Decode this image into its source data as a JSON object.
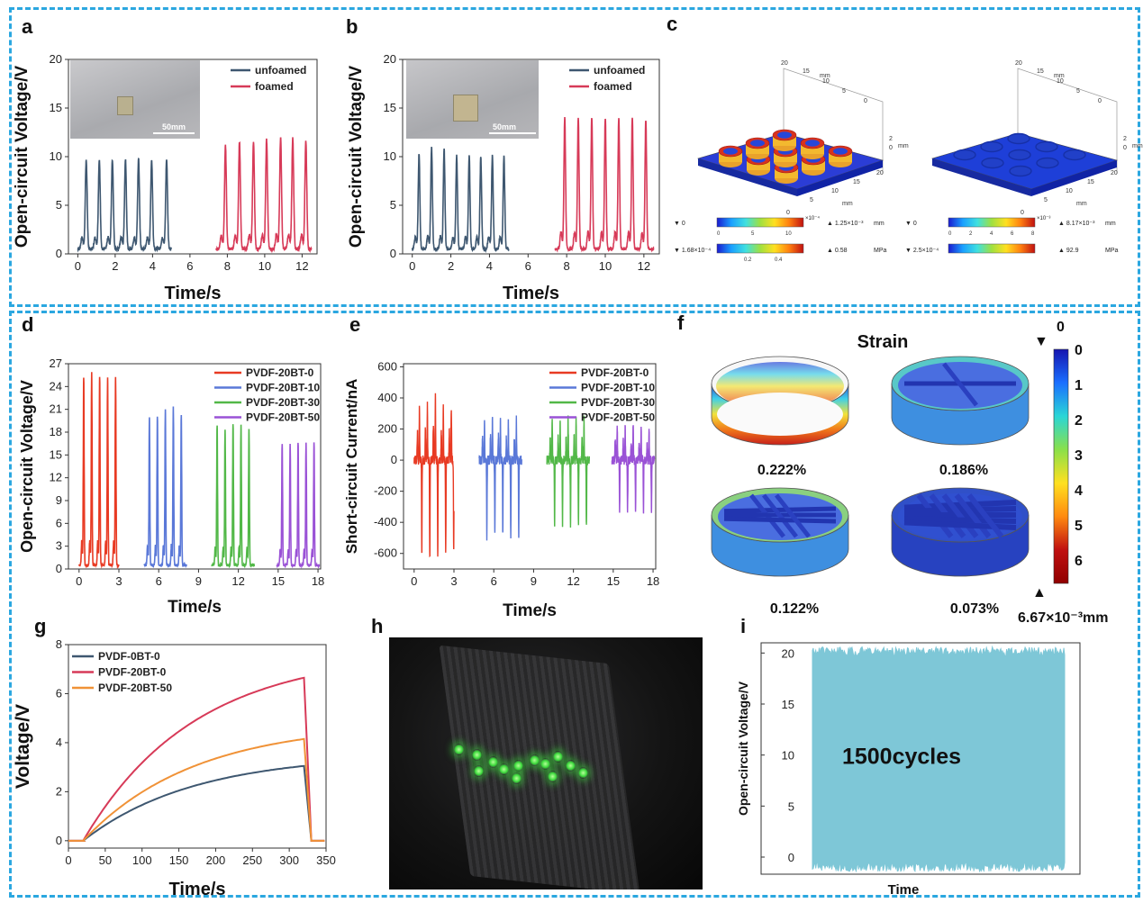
{
  "panels": {
    "a": "a",
    "b": "b",
    "c": "c",
    "d": "d",
    "e": "e",
    "f": "f",
    "g": "g",
    "h": "h",
    "i": "i"
  },
  "colors": {
    "unfoamed": "#3e5770",
    "foamed": "#d73a58",
    "bt0": "#e83a23",
    "bt10": "#5a78d8",
    "bt30": "#52b848",
    "bt50": "#9a52d6",
    "g0": "#3e5770",
    "g20_0": "#d73a58",
    "g20_50": "#f09237",
    "cycles": "#7ec7d7",
    "frame": "#2ba7e0"
  },
  "insets": {
    "scale_a": "50mm",
    "scale_b": "50mm"
  },
  "sim": {
    "left": {
      "axis_top": "20",
      "axis_t1": "15",
      "axis_t2": "10",
      "axis_t3": "5",
      "axis_t4": "0",
      "unit": "mm",
      "side_2": "2",
      "side_0": "0",
      "front_20": "20",
      "front_15": "15",
      "front_10": "10",
      "front_5": "5",
      "front_0": "0",
      "disp_min": "0",
      "disp_exp": "×10⁻⁴",
      "disp_max": "1.25×10⁻³",
      "disp_unit": "mm",
      "disp_t0": "0",
      "disp_t1": "5",
      "disp_t2": "10",
      "stress_min": "1.68×10⁻⁴",
      "stress_max": "0.58",
      "stress_unit": "MPa",
      "stress_t1": "0.2",
      "stress_t2": "0.4"
    },
    "right": {
      "axis_top": "20",
      "axis_t1": "15",
      "axis_t2": "10",
      "axis_t3": "5",
      "axis_t4": "0",
      "unit": "mm",
      "side_2": "2",
      "side_0": "0",
      "front_20": "20",
      "front_15": "15",
      "front_10": "10",
      "front_5": "5",
      "front_0": "0",
      "disp_min": "0",
      "disp_exp": "×10⁻³",
      "disp_max": "8.17×10⁻³",
      "disp_unit": "mm",
      "disp_t0": "0",
      "disp_t1": "2",
      "disp_t2": "4",
      "disp_t3": "6",
      "disp_t4": "8",
      "stress_min": "2.5×10⁻⁴",
      "stress_max": "92.9",
      "stress_unit": "MPa"
    }
  },
  "strain": {
    "title": "Strain",
    "values": [
      "0.222%",
      "0.186%",
      "0.122%",
      "0.073%"
    ],
    "scale_ticks": [
      "0",
      "1",
      "2",
      "3",
      "4",
      "5",
      "6"
    ],
    "scale_bottom": "6.67×10⁻³mm",
    "scale_top": "0"
  },
  "chart_data": [
    {
      "id": "a",
      "type": "line",
      "ylabel": "Open-circuit Voltage/V",
      "xlabel": "Time/s",
      "xlim": [
        -0.5,
        12.8
      ],
      "ylim": [
        0,
        20
      ],
      "xticks": [
        0,
        2,
        4,
        6,
        8,
        10,
        12
      ],
      "yticks": [
        0,
        5,
        10,
        15,
        20
      ],
      "series": [
        {
          "name": "unfoamed",
          "peaks_t": [
            0.45,
            1.15,
            1.85,
            2.55,
            3.25,
            3.95,
            4.75
          ],
          "peaks_v": [
            9.2,
            9.2,
            9.2,
            9.2,
            9.3,
            9.2,
            9.2
          ],
          "t_range": [
            0,
            5
          ]
        },
        {
          "name": "foamed",
          "peaks_t": [
            7.9,
            8.65,
            9.4,
            10.1,
            10.85,
            11.5,
            12.2
          ],
          "peaks_v": [
            10.6,
            11.0,
            11.1,
            11.3,
            11.5,
            11.4,
            11.2
          ],
          "t_range": [
            7.4,
            12.5
          ]
        }
      ]
    },
    {
      "id": "b",
      "type": "line",
      "ylabel": "Open-circuit Voltage/V",
      "xlabel": "Time/s",
      "xlim": [
        -0.5,
        12.8
      ],
      "ylim": [
        0,
        20
      ],
      "xticks": [
        0,
        2,
        4,
        6,
        8,
        10,
        12
      ],
      "yticks": [
        0,
        5,
        10,
        15,
        20
      ],
      "series": [
        {
          "name": "unfoamed",
          "peaks_t": [
            0.35,
            1.0,
            1.65,
            2.3,
            2.95,
            3.55,
            4.15,
            4.75
          ],
          "peaks_v": [
            9.8,
            10.5,
            10.2,
            9.6,
            9.6,
            9.5,
            9.6,
            9.5
          ],
          "t_range": [
            0,
            5
          ]
        },
        {
          "name": "foamed",
          "peaks_t": [
            7.9,
            8.6,
            9.3,
            10.0,
            10.7,
            11.4,
            12.1
          ],
          "peaks_v": [
            13.5,
            13.4,
            13.6,
            13.5,
            13.4,
            13.5,
            13.3
          ],
          "t_range": [
            7.4,
            12.5
          ]
        }
      ]
    },
    {
      "id": "d",
      "type": "line",
      "ylabel": "Open-circuit Voltage/V",
      "xlabel": "Time/s",
      "xlim": [
        -0.8,
        18.2
      ],
      "ylim": [
        0,
        27
      ],
      "xticks": [
        0,
        3,
        6,
        9,
        12,
        15,
        18
      ],
      "yticks": [
        0,
        3,
        6,
        9,
        12,
        15,
        18,
        21,
        24,
        27
      ],
      "series": [
        {
          "name": "PVDF-20BT-0",
          "peaks_t": [
            0.35,
            0.95,
            1.55,
            2.15,
            2.75
          ],
          "peaks_v": [
            24.8,
            25.3,
            24.8,
            24.7,
            24.8
          ],
          "t_range": [
            0,
            3
          ]
        },
        {
          "name": "PVDF-20BT-10",
          "peaks_t": [
            5.3,
            5.9,
            6.5,
            7.1,
            7.7
          ],
          "peaks_v": [
            19.6,
            19.6,
            20.6,
            20.8,
            19.6
          ],
          "t_range": [
            4.9,
            8.1
          ]
        },
        {
          "name": "PVDF-20BT-30",
          "peaks_t": [
            10.4,
            11.0,
            11.6,
            12.2,
            12.8
          ],
          "peaks_v": [
            18.4,
            17.8,
            18.6,
            18.4,
            17.8
          ],
          "t_range": [
            10.0,
            13.2
          ]
        },
        {
          "name": "PVDF-20BT-50",
          "peaks_t": [
            15.3,
            15.9,
            16.5,
            17.1,
            17.7
          ],
          "peaks_v": [
            15.9,
            15.9,
            16.1,
            16.0,
            16.0
          ],
          "t_range": [
            14.9,
            18.1
          ]
        }
      ]
    },
    {
      "id": "e",
      "type": "line",
      "ylabel": "Short-circuit Current/nA",
      "xlabel": "Time/s",
      "xlim": [
        -0.8,
        18.2
      ],
      "ylim": [
        -700,
        620
      ],
      "xticks": [
        0,
        3,
        6,
        9,
        12,
        15,
        18
      ],
      "yticks": [
        -600,
        -400,
        -200,
        0,
        200,
        400,
        600
      ],
      "series": [
        {
          "name": "PVDF-20BT-0",
          "pos": [
            350,
            360,
            420,
            350,
            330
          ],
          "neg": [
            -600,
            -630,
            -620,
            -600,
            -580
          ],
          "peaks_t": [
            0.4,
            1.0,
            1.6,
            2.2,
            2.8
          ],
          "t_range": [
            0,
            3
          ]
        },
        {
          "name": "PVDF-20BT-10",
          "pos": [
            265,
            270,
            270,
            250,
            265
          ],
          "neg": [
            -490,
            -480,
            -490,
            -490,
            -500
          ],
          "peaks_t": [
            5.3,
            5.9,
            6.5,
            7.1,
            7.7
          ],
          "t_range": [
            4.9,
            8.1
          ]
        },
        {
          "name": "PVDF-20BT-30",
          "pos": [
            270,
            270,
            270,
            265,
            270
          ],
          "neg": [
            -430,
            -430,
            -430,
            -425,
            -430
          ],
          "peaks_t": [
            10.4,
            11.0,
            11.6,
            12.2,
            12.8
          ],
          "t_range": [
            10.0,
            13.2
          ]
        },
        {
          "name": "PVDF-20BT-50",
          "pos": [
            215,
            220,
            220,
            220,
            215
          ],
          "neg": [
            -330,
            -330,
            -330,
            -330,
            -340
          ],
          "peaks_t": [
            15.3,
            15.9,
            16.5,
            17.1,
            17.7
          ],
          "t_range": [
            14.9,
            18.1
          ]
        }
      ]
    },
    {
      "id": "g",
      "type": "line",
      "ylabel": "Voltage/V",
      "xlabel": "Time/s",
      "xlim": [
        0,
        350
      ],
      "ylim": [
        -0.3,
        8
      ],
      "xticks": [
        0,
        50,
        100,
        150,
        200,
        250,
        300,
        350
      ],
      "yticks": [
        0,
        2,
        4,
        6,
        8
      ],
      "series": [
        {
          "name": "PVDF-0BT-0",
          "final": 3.05
        },
        {
          "name": "PVDF-20BT-0",
          "final": 6.65
        },
        {
          "name": "PVDF-20BT-50",
          "final": 4.15
        }
      ],
      "charge_start": 20,
      "charge_end": 320,
      "drop_end": 330
    },
    {
      "id": "i",
      "type": "area",
      "ylabel": "Open-circuit Voltage/V",
      "xlabel": "Time",
      "ylim": [
        -1.5,
        21
      ],
      "yticks": [
        0,
        5,
        10,
        15,
        20
      ],
      "upper_level": 20,
      "lower_level": -1,
      "annotation": "1500cycles",
      "cycles": 1500
    }
  ]
}
